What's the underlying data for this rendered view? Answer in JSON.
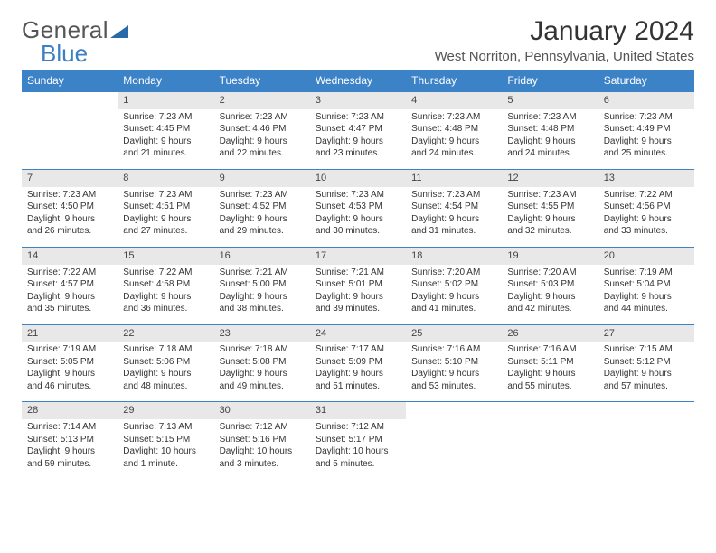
{
  "logo": {
    "text1": "General",
    "text2": "Blue"
  },
  "title": "January 2024",
  "location": "West Norriton, Pennsylvania, United States",
  "colors": {
    "header_bg": "#3b82c7",
    "header_text": "#ffffff",
    "daynum_bg": "#e8e8e8",
    "row_border": "#3b82c7",
    "text": "#333333",
    "logo_gray": "#555555",
    "logo_blue": "#3b7fc4",
    "background": "#ffffff"
  },
  "typography": {
    "title_fontsize": 30,
    "location_fontsize": 15,
    "header_fontsize": 12,
    "daynum_fontsize": 11,
    "detail_fontsize": 10,
    "logo_fontsize": 26
  },
  "days_of_week": [
    "Sunday",
    "Monday",
    "Tuesday",
    "Wednesday",
    "Thursday",
    "Friday",
    "Saturday"
  ],
  "weeks": [
    [
      null,
      {
        "n": "1",
        "sr": "7:23 AM",
        "ss": "4:45 PM",
        "dl": "9 hours and 21 minutes."
      },
      {
        "n": "2",
        "sr": "7:23 AM",
        "ss": "4:46 PM",
        "dl": "9 hours and 22 minutes."
      },
      {
        "n": "3",
        "sr": "7:23 AM",
        "ss": "4:47 PM",
        "dl": "9 hours and 23 minutes."
      },
      {
        "n": "4",
        "sr": "7:23 AM",
        "ss": "4:48 PM",
        "dl": "9 hours and 24 minutes."
      },
      {
        "n": "5",
        "sr": "7:23 AM",
        "ss": "4:48 PM",
        "dl": "9 hours and 24 minutes."
      },
      {
        "n": "6",
        "sr": "7:23 AM",
        "ss": "4:49 PM",
        "dl": "9 hours and 25 minutes."
      }
    ],
    [
      {
        "n": "7",
        "sr": "7:23 AM",
        "ss": "4:50 PM",
        "dl": "9 hours and 26 minutes."
      },
      {
        "n": "8",
        "sr": "7:23 AM",
        "ss": "4:51 PM",
        "dl": "9 hours and 27 minutes."
      },
      {
        "n": "9",
        "sr": "7:23 AM",
        "ss": "4:52 PM",
        "dl": "9 hours and 29 minutes."
      },
      {
        "n": "10",
        "sr": "7:23 AM",
        "ss": "4:53 PM",
        "dl": "9 hours and 30 minutes."
      },
      {
        "n": "11",
        "sr": "7:23 AM",
        "ss": "4:54 PM",
        "dl": "9 hours and 31 minutes."
      },
      {
        "n": "12",
        "sr": "7:23 AM",
        "ss": "4:55 PM",
        "dl": "9 hours and 32 minutes."
      },
      {
        "n": "13",
        "sr": "7:22 AM",
        "ss": "4:56 PM",
        "dl": "9 hours and 33 minutes."
      }
    ],
    [
      {
        "n": "14",
        "sr": "7:22 AM",
        "ss": "4:57 PM",
        "dl": "9 hours and 35 minutes."
      },
      {
        "n": "15",
        "sr": "7:22 AM",
        "ss": "4:58 PM",
        "dl": "9 hours and 36 minutes."
      },
      {
        "n": "16",
        "sr": "7:21 AM",
        "ss": "5:00 PM",
        "dl": "9 hours and 38 minutes."
      },
      {
        "n": "17",
        "sr": "7:21 AM",
        "ss": "5:01 PM",
        "dl": "9 hours and 39 minutes."
      },
      {
        "n": "18",
        "sr": "7:20 AM",
        "ss": "5:02 PM",
        "dl": "9 hours and 41 minutes."
      },
      {
        "n": "19",
        "sr": "7:20 AM",
        "ss": "5:03 PM",
        "dl": "9 hours and 42 minutes."
      },
      {
        "n": "20",
        "sr": "7:19 AM",
        "ss": "5:04 PM",
        "dl": "9 hours and 44 minutes."
      }
    ],
    [
      {
        "n": "21",
        "sr": "7:19 AM",
        "ss": "5:05 PM",
        "dl": "9 hours and 46 minutes."
      },
      {
        "n": "22",
        "sr": "7:18 AM",
        "ss": "5:06 PM",
        "dl": "9 hours and 48 minutes."
      },
      {
        "n": "23",
        "sr": "7:18 AM",
        "ss": "5:08 PM",
        "dl": "9 hours and 49 minutes."
      },
      {
        "n": "24",
        "sr": "7:17 AM",
        "ss": "5:09 PM",
        "dl": "9 hours and 51 minutes."
      },
      {
        "n": "25",
        "sr": "7:16 AM",
        "ss": "5:10 PM",
        "dl": "9 hours and 53 minutes."
      },
      {
        "n": "26",
        "sr": "7:16 AM",
        "ss": "5:11 PM",
        "dl": "9 hours and 55 minutes."
      },
      {
        "n": "27",
        "sr": "7:15 AM",
        "ss": "5:12 PM",
        "dl": "9 hours and 57 minutes."
      }
    ],
    [
      {
        "n": "28",
        "sr": "7:14 AM",
        "ss": "5:13 PM",
        "dl": "9 hours and 59 minutes."
      },
      {
        "n": "29",
        "sr": "7:13 AM",
        "ss": "5:15 PM",
        "dl": "10 hours and 1 minute."
      },
      {
        "n": "30",
        "sr": "7:12 AM",
        "ss": "5:16 PM",
        "dl": "10 hours and 3 minutes."
      },
      {
        "n": "31",
        "sr": "7:12 AM",
        "ss": "5:17 PM",
        "dl": "10 hours and 5 minutes."
      },
      null,
      null,
      null
    ]
  ],
  "labels": {
    "sunrise": "Sunrise:",
    "sunset": "Sunset:",
    "daylight": "Daylight:"
  }
}
